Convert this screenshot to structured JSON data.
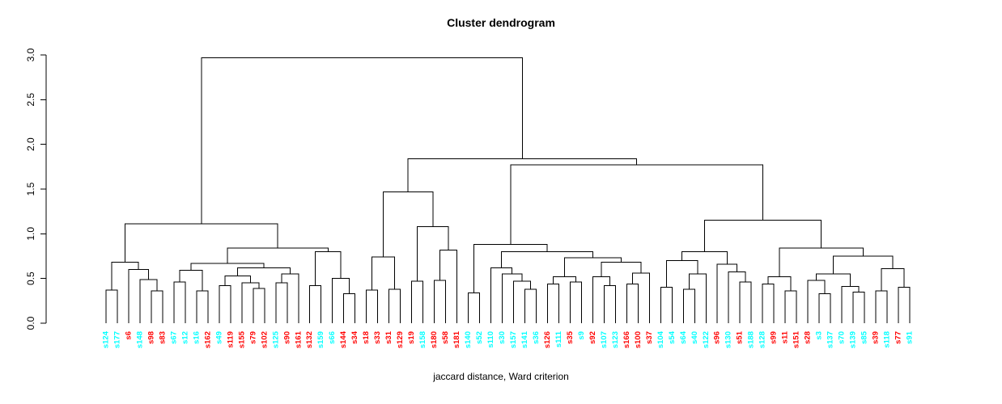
{
  "chart_data": {
    "type": "dendrogram",
    "title": "Cluster dendrogram",
    "xlabel": "jaccard distance, Ward criterion",
    "ylabel": "",
    "ylim": [
      0,
      3
    ],
    "yticks": [
      0,
      0.5,
      1,
      1.5,
      2,
      2.5,
      3
    ],
    "ytick_labels": [
      "0.0",
      "0.5",
      "1.0",
      "1.5",
      "2.0",
      "2.5",
      "3.0"
    ],
    "grid": false,
    "legend": "none",
    "line_color": "#000000",
    "axis_color": "#000000",
    "label_colors": {
      "c": "#00FFFF",
      "r": "#FF0000"
    },
    "root_height": 2.97,
    "leaves": [
      [
        "s124",
        "c"
      ],
      [
        "s177",
        "c"
      ],
      [
        "s6",
        "r"
      ],
      [
        "s148",
        "c"
      ],
      [
        "s98",
        "r"
      ],
      [
        "s83",
        "r"
      ],
      [
        "s67",
        "c"
      ],
      [
        "s12",
        "c"
      ],
      [
        "s16",
        "c"
      ],
      [
        "s162",
        "r"
      ],
      [
        "s49",
        "c"
      ],
      [
        "s119",
        "r"
      ],
      [
        "s155",
        "r"
      ],
      [
        "s79",
        "r"
      ],
      [
        "s102",
        "r"
      ],
      [
        "s125",
        "c"
      ],
      [
        "s90",
        "r"
      ],
      [
        "s161",
        "r"
      ],
      [
        "s132",
        "r"
      ],
      [
        "s159",
        "c"
      ],
      [
        "s66",
        "c"
      ],
      [
        "s144",
        "r"
      ],
      [
        "s34",
        "r"
      ],
      [
        "s18",
        "r"
      ],
      [
        "s33",
        "r"
      ],
      [
        "s31",
        "r"
      ],
      [
        "s129",
        "r"
      ],
      [
        "s19",
        "r"
      ],
      [
        "s158",
        "c"
      ],
      [
        "s180",
        "r"
      ],
      [
        "s58",
        "r"
      ],
      [
        "s181",
        "r"
      ],
      [
        "s140",
        "c"
      ],
      [
        "s52",
        "c"
      ],
      [
        "s110",
        "c"
      ],
      [
        "s30",
        "c"
      ],
      [
        "s157",
        "c"
      ],
      [
        "s141",
        "c"
      ],
      [
        "s36",
        "c"
      ],
      [
        "s126",
        "r"
      ],
      [
        "s111",
        "c"
      ],
      [
        "s35",
        "r"
      ],
      [
        "s9",
        "c"
      ],
      [
        "s92",
        "r"
      ],
      [
        "s107",
        "c"
      ],
      [
        "s123",
        "c"
      ],
      [
        "s166",
        "r"
      ],
      [
        "s100",
        "r"
      ],
      [
        "s37",
        "r"
      ],
      [
        "s104",
        "c"
      ],
      [
        "s54",
        "c"
      ],
      [
        "s64",
        "c"
      ],
      [
        "s40",
        "c"
      ],
      [
        "s122",
        "c"
      ],
      [
        "s96",
        "r"
      ],
      [
        "s130",
        "c"
      ],
      [
        "s51",
        "r"
      ],
      [
        "s188",
        "c"
      ],
      [
        "s128",
        "c"
      ],
      [
        "s99",
        "r"
      ],
      [
        "s11",
        "r"
      ],
      [
        "s151",
        "r"
      ],
      [
        "s28",
        "r"
      ],
      [
        "s3",
        "c"
      ],
      [
        "s137",
        "c"
      ],
      [
        "s70",
        "c"
      ],
      [
        "s139",
        "c"
      ],
      [
        "s85",
        "c"
      ],
      [
        "s39",
        "r"
      ],
      [
        "s118",
        "c"
      ],
      [
        "s77",
        "r"
      ],
      [
        "s91",
        "c"
      ]
    ],
    "tree": [
      2.97,
      [
        1.11,
        [
          0.68,
          [
            0.37,
            0,
            1
          ],
          [
            0.6,
            2,
            [
              0.49,
              3,
              [
                0.36,
                4,
                5
              ]
            ]
          ]
        ],
        [
          0.84,
          [
            0.67,
            [
              0.59,
              [
                0.46,
                6,
                7
              ],
              [
                0.36,
                8,
                9
              ]
            ],
            [
              0.62,
              [
                0.53,
                [
                  0.42,
                  10,
                  11
                ],
                [
                  0.45,
                  12,
                  [
                    0.39,
                    13,
                    14
                  ]
                ]
              ],
              [
                0.55,
                [
                  0.45,
                  15,
                  16
                ],
                17
              ]
            ]
          ],
          [
            0.8,
            [
              0.42,
              18,
              19
            ],
            [
              0.5,
              20,
              [
                0.33,
                21,
                22
              ]
            ]
          ]
        ]
      ],
      [
        1.84,
        [
          1.47,
          [
            0.74,
            [
              0.37,
              23,
              24
            ],
            [
              0.38,
              25,
              26
            ]
          ],
          [
            1.08,
            [
              0.47,
              27,
              28
            ],
            [
              0.82,
              [
                0.48,
                29,
                30
              ],
              31
            ]
          ]
        ],
        [
          1.77,
          [
            0.88,
            [
              0.34,
              32,
              33
            ],
            [
              0.8,
              [
                0.62,
                34,
                [
                  0.55,
                  35,
                  [
                    0.47,
                    36,
                    [
                      0.38,
                      37,
                      38
                    ]
                  ]
                ]
              ],
              [
                0.73,
                [
                  0.52,
                  [
                    0.44,
                    39,
                    40
                  ],
                  [
                    0.46,
                    41,
                    42
                  ]
                ],
                [
                  0.68,
                  [
                    0.52,
                    43,
                    [
                      0.42,
                      44,
                      45
                    ]
                  ],
                  [
                    0.56,
                    [
                      0.44,
                      46,
                      47
                    ],
                    48
                  ]
                ]
              ]
            ]
          ],
          [
            1.15,
            [
              0.8,
              [
                0.7,
                [
                  0.4,
                  49,
                  50
                ],
                [
                  0.55,
                  [
                    0.38,
                    51,
                    52
                  ],
                  53
                ]
              ],
              [
                0.66,
                54,
                [
                  0.575,
                  55,
                  [
                    0.46,
                    56,
                    57
                  ]
                ]
              ]
            ],
            [
              0.84,
              [
                0.52,
                [
                  0.44,
                  58,
                  59
                ],
                [
                  0.36,
                  60,
                  61
                ]
              ],
              [
                0.75,
                [
                  0.55,
                  [
                    0.48,
                    62,
                    [
                      0.33,
                      63,
                      64
                    ]
                  ],
                  [
                    0.41,
                    65,
                    [
                      0.35,
                      66,
                      67
                    ]
                  ]
                ],
                [
                  0.61,
                  [
                    0.36,
                    68,
                    69
                  ],
                  [
                    0.4,
                    70,
                    71
                  ]
                ]
              ]
            ]
          ]
        ]
      ]
    ]
  }
}
